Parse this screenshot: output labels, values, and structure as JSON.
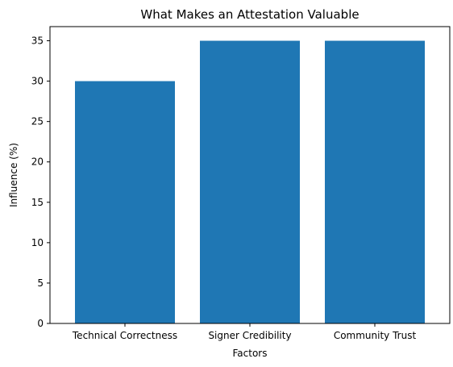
{
  "chart_data": {
    "type": "bar",
    "title": "What Makes an Attestation Valuable",
    "xlabel": "Factors",
    "ylabel": "Influence (%)",
    "categories": [
      "Technical Correctness",
      "Signer Credibility",
      "Community Trust"
    ],
    "values": [
      30,
      35,
      35
    ],
    "ylim": [
      0,
      36.75
    ],
    "yticks": [
      0,
      5,
      10,
      15,
      20,
      25,
      30,
      35
    ],
    "bar_color": "#1f77b4",
    "grid": false,
    "legend": "none"
  }
}
